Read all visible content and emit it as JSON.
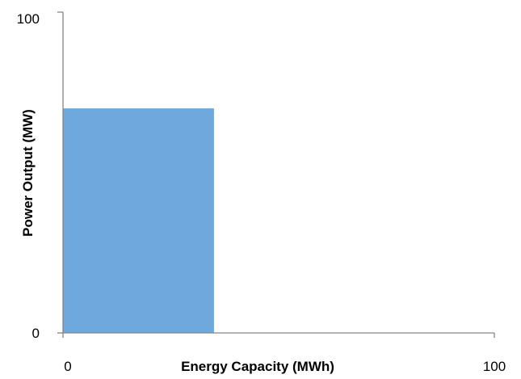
{
  "chart_data": {
    "type": "bar",
    "title": "",
    "xlabel": "Energy Capacity (MWh)",
    "ylabel": "Power Output (MW)",
    "xlim": [
      0,
      100
    ],
    "ylim": [
      0,
      100
    ],
    "x_ticks": [
      "0",
      "100"
    ],
    "y_ticks": [
      "0",
      "100"
    ],
    "grid": false,
    "legend": "none",
    "bars": [
      {
        "x0": 0,
        "x1": 35,
        "value": 70
      }
    ],
    "colors": {
      "bar": "#6fa8dc",
      "axis": "#868686"
    }
  }
}
